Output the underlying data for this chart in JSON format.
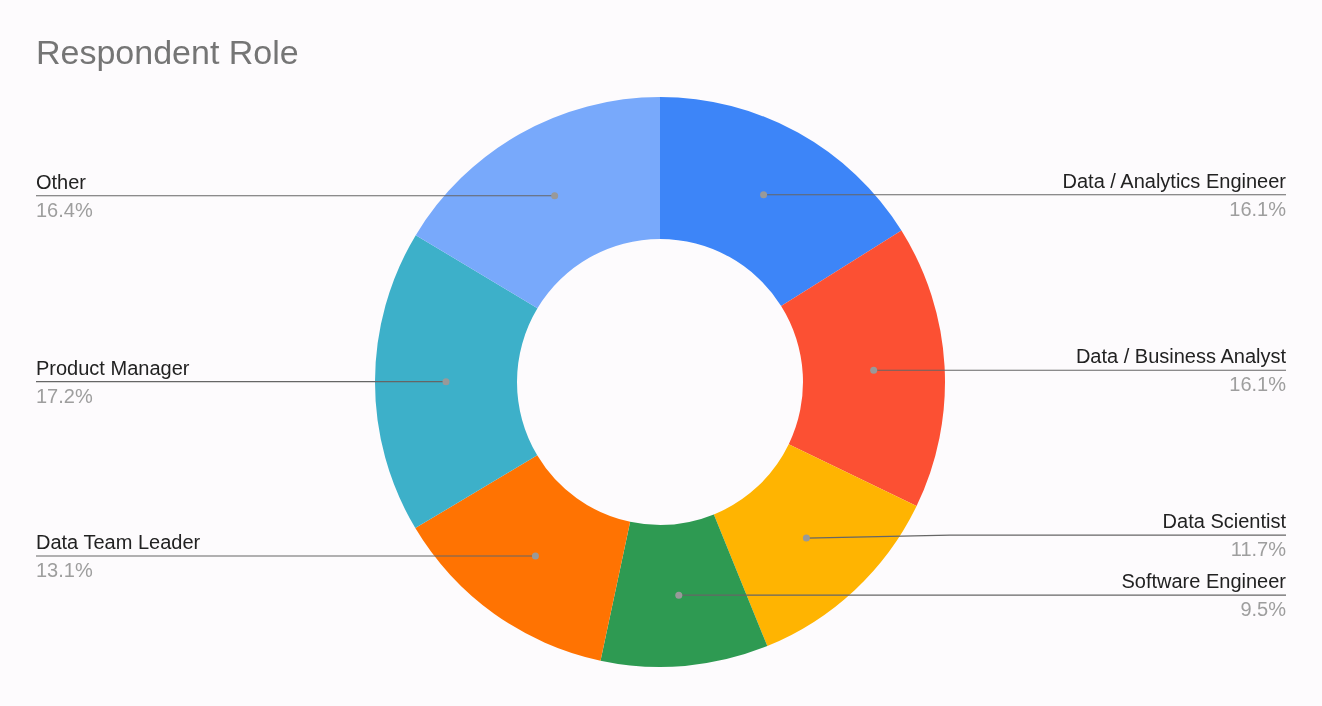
{
  "chart_data": {
    "type": "donut",
    "title": "Respondent Role",
    "categories": [
      "Data / Analytics Engineer",
      "Data / Business Analyst",
      "Data Scientist",
      "Software Engineer",
      "Data Team Leader",
      "Product Manager",
      "Other"
    ],
    "values": [
      16.1,
      16.1,
      11.7,
      9.5,
      13.1,
      17.2,
      16.4
    ],
    "value_labels": [
      "16.1%",
      "16.1%",
      "11.7%",
      "9.5%",
      "13.1%",
      "17.2%",
      "16.4%"
    ],
    "colors": [
      "#3d85f8",
      "#fc5033",
      "#ffb401",
      "#2e9a52",
      "#ff7302",
      "#3db0c9",
      "#78a9fb"
    ],
    "legend": false
  }
}
